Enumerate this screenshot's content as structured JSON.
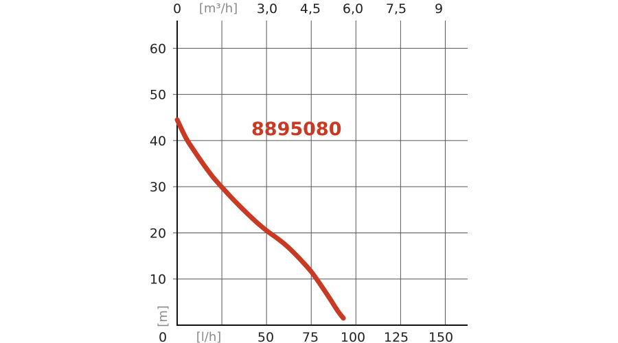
{
  "chart_data": {
    "type": "line",
    "model_label": "8895080",
    "x_bottom_unit": "[l/h]",
    "x_top_unit": "[m³/h]",
    "y_unit": "[m]",
    "x_bottom_ticks": [
      "0",
      "50",
      "75",
      "100",
      "125",
      "150"
    ],
    "x_top_ticks": [
      "0",
      "3,0",
      "4,5",
      "6,0",
      "7,5",
      "9"
    ],
    "y_ticks": [
      "10",
      "20",
      "30",
      "40",
      "50",
      "60"
    ],
    "y_zero_label": "0",
    "xlim": [
      0,
      162.5
    ],
    "ylim": [
      0,
      66
    ],
    "grid": true,
    "colors": {
      "curve": "#c93a24",
      "grid": "#555555",
      "axis": "#111111"
    },
    "series": [
      {
        "x": [
          0,
          5,
          10,
          15,
          20,
          25,
          30,
          35,
          40,
          45,
          50,
          55,
          60,
          65,
          70,
          75,
          80,
          85,
          90,
          93
        ],
        "y": [
          44.5,
          40.5,
          37.5,
          34.7,
          32.1,
          29.9,
          27.8,
          25.8,
          23.9,
          22.1,
          20.5,
          19.1,
          17.6,
          15.8,
          13.8,
          11.6,
          8.9,
          6.0,
          3.0,
          1.5
        ]
      }
    ]
  }
}
